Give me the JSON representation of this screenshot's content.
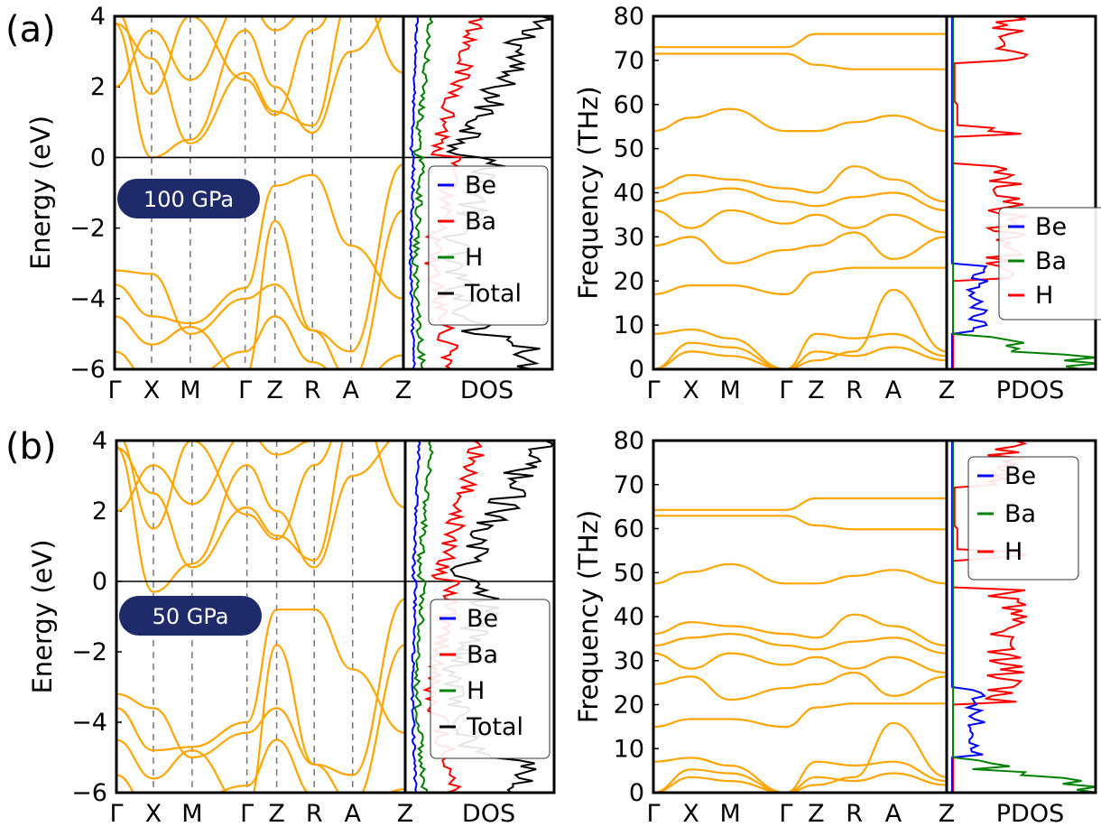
{
  "figure": {
    "panel_labels": [
      "(a)",
      "(b)"
    ]
  },
  "colors": {
    "bands": "#ffa500",
    "Be": "#0000ff",
    "Ba": "#ff0000",
    "H": "#008000",
    "Total": "#000000",
    "ph_Be": "#0000ff",
    "ph_Ba": "#008000",
    "ph_H": "#ff0000",
    "badge": "#1f2a6b"
  },
  "chart_data": [
    {
      "type": "line",
      "panel": "(a)",
      "title": "",
      "ylabel": "Energy (eV)",
      "ylim": [
        -6,
        4
      ],
      "yticks": [
        "4",
        "2",
        "0",
        "−2",
        "−4",
        "−6"
      ],
      "yticks_values": [
        4,
        2,
        0,
        -2,
        -4,
        -6
      ],
      "xticks": [
        "Γ",
        "X",
        "M",
        "Γ",
        "Z",
        "R",
        "A",
        "Z"
      ],
      "fermi_level": 0,
      "pressure_label": "100 GPa",
      "dos_label": "DOS",
      "legend": [
        "Be",
        "Ba",
        "H",
        "Total"
      ]
    },
    {
      "type": "line",
      "panel": "(a)",
      "title": "",
      "ylabel": "Frequency (THz)",
      "ylim": [
        0,
        80
      ],
      "yticks": [
        "80",
        "70",
        "60",
        "50",
        "40",
        "30",
        "20",
        "10",
        "0"
      ],
      "yticks_values": [
        80,
        70,
        60,
        50,
        40,
        30,
        20,
        10,
        0
      ],
      "xticks": [
        "Γ",
        "X",
        "M",
        "Γ",
        "Z",
        "R",
        "A",
        "Z"
      ],
      "dos_label": "PDOS",
      "legend": [
        "Be",
        "Ba",
        "H"
      ]
    },
    {
      "type": "line",
      "panel": "(b)",
      "title": "",
      "ylabel": "Energy (eV)",
      "ylim": [
        -6,
        4
      ],
      "yticks": [
        "4",
        "2",
        "0",
        "−2",
        "−4",
        "−6"
      ],
      "yticks_values": [
        4,
        2,
        0,
        -2,
        -4,
        -6
      ],
      "xticks": [
        "Γ",
        "X",
        "M",
        "Γ",
        "Z",
        "R",
        "A",
        "Z"
      ],
      "fermi_level": 0,
      "pressure_label": "50 GPa",
      "dos_label": "DOS",
      "legend": [
        "Be",
        "Ba",
        "H",
        "Total"
      ]
    },
    {
      "type": "line",
      "panel": "(b)",
      "title": "",
      "ylabel": "Frequency (THz)",
      "ylim": [
        0,
        80
      ],
      "yticks": [
        "80",
        "70",
        "60",
        "50",
        "40",
        "30",
        "20",
        "10",
        "0"
      ],
      "yticks_values": [
        80,
        70,
        60,
        50,
        40,
        30,
        20,
        10,
        0
      ],
      "xticks": [
        "Γ",
        "X",
        "M",
        "Γ",
        "Z",
        "R",
        "A",
        "Z"
      ],
      "dos_label": "PDOS",
      "legend": [
        "Be",
        "Ba",
        "H"
      ]
    }
  ]
}
